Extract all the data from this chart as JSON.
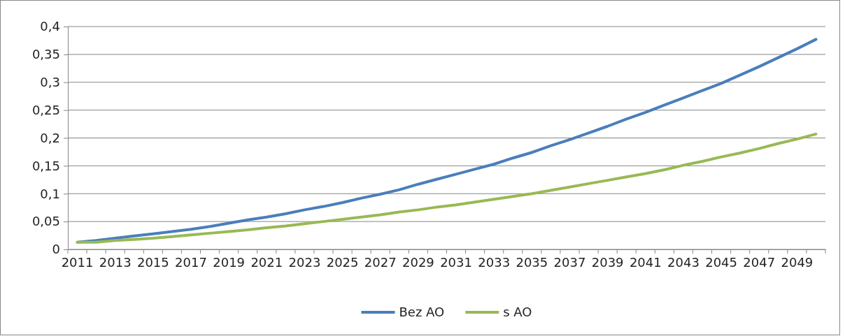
{
  "chart_data": {
    "type": "line",
    "categories": [
      "2011",
      null,
      "2013",
      null,
      "2015",
      null,
      "2017",
      null,
      "2019",
      null,
      "2021",
      null,
      "2023",
      null,
      "2025",
      null,
      "2027",
      null,
      "2029",
      null,
      "2031",
      null,
      "2033",
      null,
      "2035",
      null,
      "2037",
      null,
      "2039",
      null,
      "2041",
      null,
      "2043",
      null,
      "2045",
      null,
      "2047",
      null,
      "2049",
      null
    ],
    "series": [
      {
        "name": "Bez AO",
        "color": "#4a7ebb",
        "values": [
          0.013,
          0.016,
          0.02,
          0.024,
          0.028,
          0.032,
          0.036,
          0.041,
          0.047,
          0.053,
          0.058,
          0.064,
          0.071,
          0.077,
          0.084,
          0.092,
          0.099,
          0.107,
          0.117,
          0.126,
          0.135,
          0.144,
          0.153,
          0.164,
          0.174,
          0.186,
          0.197,
          0.209,
          0.221,
          0.234,
          0.246,
          0.259,
          0.272,
          0.285,
          0.298,
          0.313,
          0.328,
          0.344,
          0.36,
          0.377
        ]
      },
      {
        "name": "s AO",
        "color": "#98b954",
        "values": [
          0.013,
          0.013,
          0.016,
          0.018,
          0.02,
          0.023,
          0.026,
          0.029,
          0.032,
          0.035,
          0.039,
          0.042,
          0.046,
          0.05,
          0.054,
          0.058,
          0.062,
          0.067,
          0.071,
          0.076,
          0.08,
          0.085,
          0.09,
          0.095,
          0.1,
          0.106,
          0.112,
          0.118,
          0.124,
          0.13,
          0.136,
          0.143,
          0.151,
          0.158,
          0.166,
          0.173,
          0.181,
          0.19,
          0.198,
          0.207
        ]
      }
    ],
    "ylim": [
      0,
      0.4
    ],
    "yticks": [
      0,
      {
        "value": 0.05,
        "label": "0,05"
      },
      {
        "value": 0.1,
        "label": "0,1"
      },
      {
        "value": 0.15,
        "label": "0,15"
      },
      {
        "value": 0.2,
        "label": "0,2"
      },
      {
        "value": 0.25,
        "label": "0,25"
      },
      {
        "value": 0.3,
        "label": "0,3"
      },
      {
        "value": 0.35,
        "label": "0,35"
      },
      {
        "value": 0.4,
        "label": "0,4"
      }
    ],
    "grid": "y",
    "legend": "bottom",
    "marker": "none",
    "line_style": "solid"
  }
}
